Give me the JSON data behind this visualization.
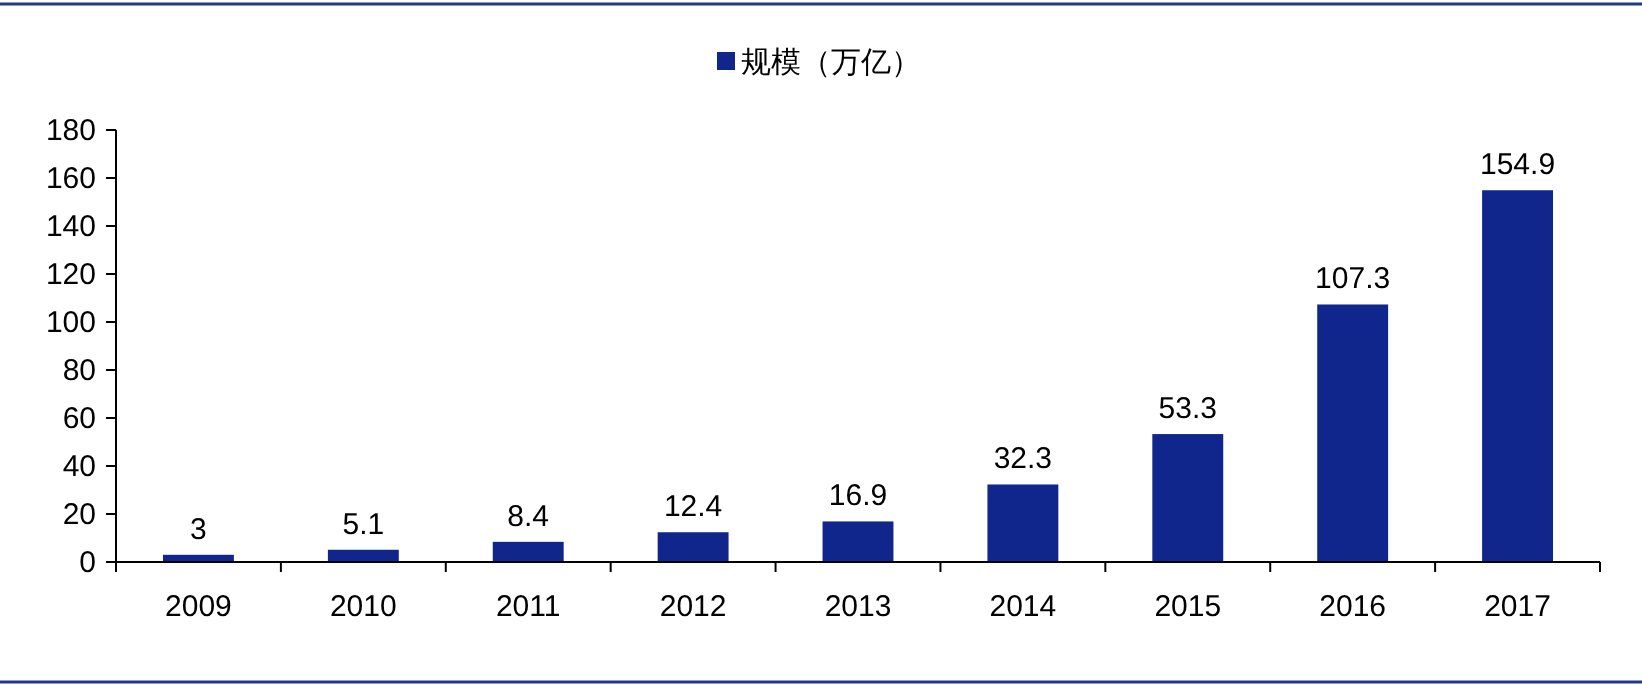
{
  "chart_data": {
    "type": "bar",
    "categories": [
      "2009",
      "2010",
      "2011",
      "2012",
      "2013",
      "2014",
      "2015",
      "2016",
      "2017"
    ],
    "series": [
      {
        "name": "规模（万亿）",
        "color": "#10268c",
        "values": [
          3,
          5.1,
          8.4,
          12.4,
          16.9,
          32.3,
          53.3,
          107.3,
          154.9
        ]
      }
    ],
    "ylim": [
      0,
      180
    ],
    "yticks": [
      0,
      20,
      40,
      60,
      80,
      100,
      120,
      140,
      160,
      180
    ],
    "data_labels": true,
    "grid": false,
    "legend": "top"
  }
}
